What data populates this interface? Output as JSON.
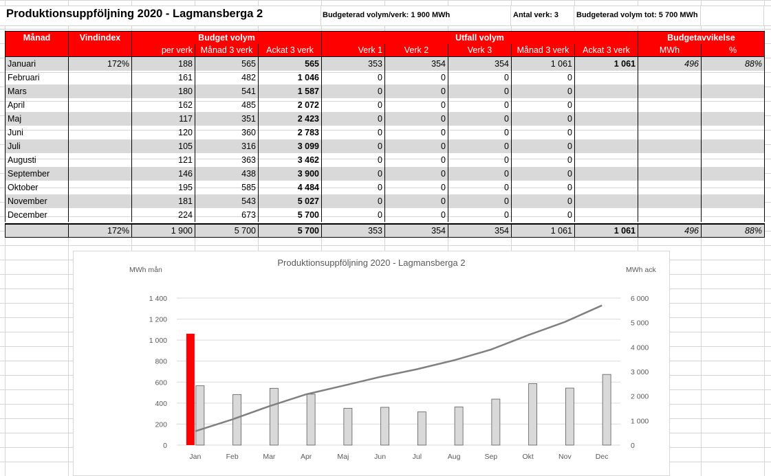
{
  "header": {
    "title": "Produktionsuppföljning 2020 - Lagmansberga 2",
    "budget_per_verk": "Budgeterad volym/verk: 1 900 MWh",
    "antal_verk": "Antal verk: 3",
    "budget_tot": "Budgeterad volym tot: 5 700 MWh"
  },
  "table": {
    "group_headers": {
      "manad": "Månad",
      "vindindex": "Vindindex",
      "budget": "Budget volym",
      "utfall": "Utfall volym",
      "avvikelse": "Budgetavvikelse"
    },
    "sub_headers": {
      "per_verk": "per verk",
      "manad3_budget": "Månad 3 verk",
      "ackat3_budget": "Ackat 3 verk",
      "verk1": "Verk 1",
      "verk2": "Verk 2",
      "verk3": "Verk 3",
      "manad3_utfall": "Månad 3 verk",
      "ackat3_utfall": "Ackat 3 verk",
      "mwh": "MWh",
      "pct": "%"
    },
    "rows": [
      {
        "month": "Januari",
        "vindindex": "172%",
        "per_verk": "188",
        "manad3": "565",
        "ackat3": "565",
        "v1": "353",
        "v2": "354",
        "v3": "354",
        "u_manad": "1 061",
        "u_ackat": "1 061",
        "mwh": "496",
        "pct": "88%"
      },
      {
        "month": "Februari",
        "vindindex": "",
        "per_verk": "161",
        "manad3": "482",
        "ackat3": "1 046",
        "v1": "0",
        "v2": "0",
        "v3": "0",
        "u_manad": "0",
        "u_ackat": "",
        "mwh": "",
        "pct": ""
      },
      {
        "month": "Mars",
        "vindindex": "",
        "per_verk": "180",
        "manad3": "541",
        "ackat3": "1 587",
        "v1": "0",
        "v2": "0",
        "v3": "0",
        "u_manad": "0",
        "u_ackat": "",
        "mwh": "",
        "pct": ""
      },
      {
        "month": "April",
        "vindindex": "",
        "per_verk": "162",
        "manad3": "485",
        "ackat3": "2 072",
        "v1": "0",
        "v2": "0",
        "v3": "0",
        "u_manad": "0",
        "u_ackat": "",
        "mwh": "",
        "pct": ""
      },
      {
        "month": "Maj",
        "vindindex": "",
        "per_verk": "117",
        "manad3": "351",
        "ackat3": "2 423",
        "v1": "0",
        "v2": "0",
        "v3": "0",
        "u_manad": "0",
        "u_ackat": "",
        "mwh": "",
        "pct": ""
      },
      {
        "month": "Juni",
        "vindindex": "",
        "per_verk": "120",
        "manad3": "360",
        "ackat3": "2 783",
        "v1": "0",
        "v2": "0",
        "v3": "0",
        "u_manad": "0",
        "u_ackat": "",
        "mwh": "",
        "pct": ""
      },
      {
        "month": "Juli",
        "vindindex": "",
        "per_verk": "105",
        "manad3": "316",
        "ackat3": "3 099",
        "v1": "0",
        "v2": "0",
        "v3": "0",
        "u_manad": "0",
        "u_ackat": "",
        "mwh": "",
        "pct": ""
      },
      {
        "month": "Augusti",
        "vindindex": "",
        "per_verk": "121",
        "manad3": "363",
        "ackat3": "3 462",
        "v1": "0",
        "v2": "0",
        "v3": "0",
        "u_manad": "0",
        "u_ackat": "",
        "mwh": "",
        "pct": ""
      },
      {
        "month": "September",
        "vindindex": "",
        "per_verk": "146",
        "manad3": "438",
        "ackat3": "3 900",
        "v1": "0",
        "v2": "0",
        "v3": "0",
        "u_manad": "0",
        "u_ackat": "",
        "mwh": "",
        "pct": ""
      },
      {
        "month": "Oktober",
        "vindindex": "",
        "per_verk": "195",
        "manad3": "585",
        "ackat3": "4 484",
        "v1": "0",
        "v2": "0",
        "v3": "0",
        "u_manad": "0",
        "u_ackat": "",
        "mwh": "",
        "pct": ""
      },
      {
        "month": "November",
        "vindindex": "",
        "per_verk": "181",
        "manad3": "543",
        "ackat3": "5 027",
        "v1": "0",
        "v2": "0",
        "v3": "0",
        "u_manad": "0",
        "u_ackat": "",
        "mwh": "",
        "pct": ""
      },
      {
        "month": "December",
        "vindindex": "",
        "per_verk": "224",
        "manad3": "673",
        "ackat3": "5 700",
        "v1": "0",
        "v2": "0",
        "v3": "0",
        "u_manad": "0",
        "u_ackat": "",
        "mwh": "",
        "pct": ""
      }
    ],
    "total": {
      "month": "",
      "vindindex": "172%",
      "per_verk": "1 900",
      "manad3": "5 700",
      "ackat3": "5 700",
      "v1": "353",
      "v2": "354",
      "v3": "354",
      "u_manad": "1 061",
      "u_ackat": "1 061",
      "mwh": "496",
      "pct": "88%"
    }
  },
  "chart_data": {
    "type": "bar",
    "title": "Produktionsuppföljning 2020 - Lagmansberga 2",
    "ylabel": "MWh mån",
    "y2label": "MWh ack",
    "categories": [
      "Jan",
      "Feb",
      "Mar",
      "Apr",
      "Maj",
      "Jun",
      "Jul",
      "Aug",
      "Sep",
      "Okt",
      "Nov",
      "Dec"
    ],
    "ylim": [
      0,
      1400
    ],
    "y2lim": [
      0,
      6000
    ],
    "yticks": [
      "0",
      "200",
      "400",
      "600",
      "800",
      "1 000",
      "1 200",
      "1 400"
    ],
    "y2ticks": [
      "0",
      "1 000",
      "2 000",
      "3 000",
      "4 000",
      "5 000",
      "6 000"
    ],
    "series": [
      {
        "type": "bar",
        "axis": "left",
        "color": "#ff0000",
        "values": [
          1061,
          0,
          0,
          0,
          0,
          0,
          0,
          0,
          0,
          0,
          0,
          0
        ]
      },
      {
        "type": "bar",
        "axis": "left",
        "color": "#d9d9d9",
        "values": [
          565,
          482,
          541,
          485,
          351,
          360,
          316,
          363,
          438,
          585,
          543,
          673
        ]
      },
      {
        "type": "line",
        "axis": "right",
        "color": "#808080",
        "values": [
          565,
          1046,
          1587,
          2072,
          2423,
          2783,
          3099,
          3462,
          3900,
          4484,
          5027,
          5700
        ]
      }
    ],
    "grid": true
  }
}
